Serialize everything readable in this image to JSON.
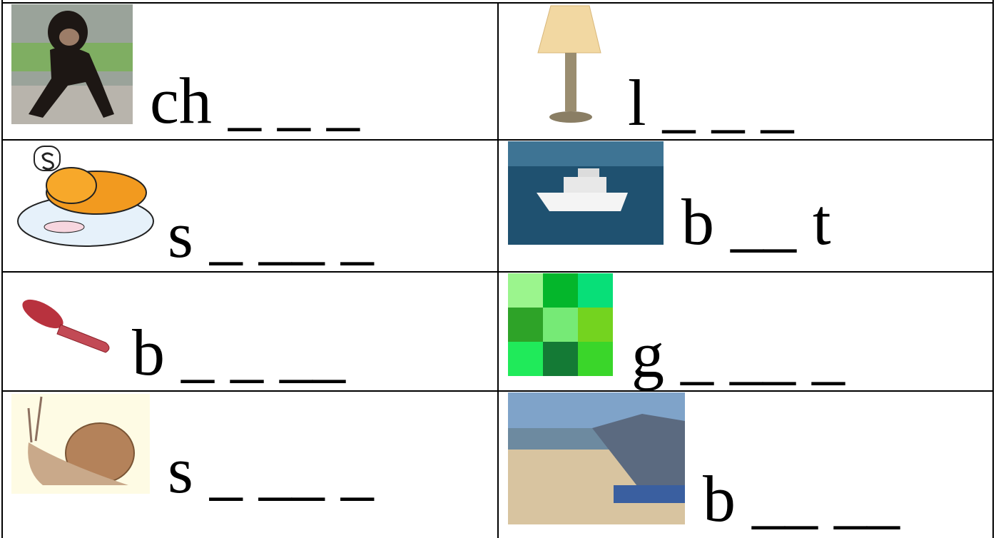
{
  "table": {
    "rows": [
      [
        "ch _ _ _",
        "l _ _ _"
      ],
      [
        "s _ __ _",
        "b __ t"
      ],
      [
        "b _ _ __",
        "g _ __ _"
      ],
      [
        "s _ __ _",
        "b __ __"
      ]
    ]
  }
}
